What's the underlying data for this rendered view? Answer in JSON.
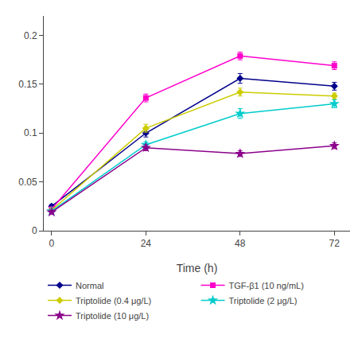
{
  "chart_data": {
    "type": "line",
    "x_label": "Time (h)",
    "x": [
      0,
      24,
      48,
      72
    ],
    "xlim": [
      -2,
      76
    ],
    "xticks": [
      0,
      24,
      48,
      72
    ],
    "ylim": [
      0,
      0.22
    ],
    "yticks": [
      0,
      0.05,
      0.1,
      0.15,
      0.2
    ],
    "grid": false,
    "legend": "bottom",
    "series": [
      {
        "name": "Normal",
        "color": "#00008B",
        "marker": "diamond",
        "values": [
          0.025,
          0.1,
          0.156,
          0.148
        ],
        "errors": [
          0.002,
          0.004,
          0.005,
          0.004
        ]
      },
      {
        "name": "TGF-β1 (10 ng/mL)",
        "color": "#FF00CC",
        "marker": "square",
        "values": [
          0.022,
          0.136,
          0.179,
          0.169
        ],
        "errors": [
          0.002,
          0.004,
          0.004,
          0.004
        ]
      },
      {
        "name": "Triptolide (0.4 μg/L)",
        "color": "#CCCC00",
        "marker": "diamond",
        "values": [
          0.021,
          0.105,
          0.142,
          0.138
        ],
        "errors": [
          0.002,
          0.004,
          0.004,
          0.003
        ]
      },
      {
        "name": "Triptolide (2 μg/L)",
        "color": "#00CCCC",
        "marker": "star",
        "values": [
          0.02,
          0.088,
          0.12,
          0.13
        ],
        "errors": [
          0.002,
          0.003,
          0.005,
          0.004
        ]
      },
      {
        "name": "Triptolide (10 μg/L)",
        "color": "#8B008B",
        "marker": "star",
        "values": [
          0.019,
          0.085,
          0.079,
          0.087
        ],
        "errors": [
          0.002,
          0.003,
          0.003,
          0.003
        ]
      }
    ]
  }
}
